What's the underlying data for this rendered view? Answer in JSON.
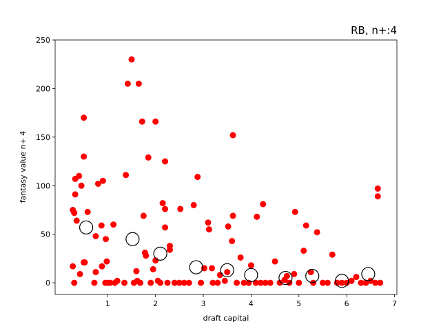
{
  "chart_data": {
    "type": "scatter",
    "title": "RB, n+:4",
    "xlabel": "draft capital",
    "ylabel": "fantasy value n+ 4",
    "xlim": [
      -0.1,
      7.05
    ],
    "ylim": [
      -12,
      250
    ],
    "xticks": [
      "1",
      "2",
      "3",
      "4",
      "5",
      "6",
      "7"
    ],
    "xtick_values": [
      1,
      2,
      3,
      4,
      5,
      6,
      7
    ],
    "yticks": [
      "0",
      "50",
      "100",
      "150",
      "200",
      "250"
    ],
    "ytick_values": [
      0,
      50,
      100,
      150,
      200,
      250
    ],
    "grid": false,
    "colors": {
      "points": "#ff0000",
      "means_edge": "#000000"
    },
    "series": [
      {
        "style": "filled-red",
        "points": [
          [
            0.27,
            75
          ],
          [
            0.3,
            72
          ],
          [
            0.27,
            17
          ],
          [
            0.3,
            0
          ],
          [
            0.32,
            107
          ],
          [
            0.32,
            91
          ],
          [
            0.35,
            64
          ],
          [
            0.4,
            110
          ],
          [
            0.42,
            9
          ],
          [
            0.45,
            100
          ],
          [
            0.5,
            170
          ],
          [
            0.5,
            130
          ],
          [
            0.5,
            21
          ],
          [
            0.52,
            21
          ],
          [
            0.58,
            73
          ],
          [
            0.72,
            0
          ],
          [
            0.75,
            48
          ],
          [
            0.75,
            11
          ],
          [
            0.8,
            102
          ],
          [
            0.87,
            59
          ],
          [
            0.88,
            17
          ],
          [
            0.9,
            105
          ],
          [
            0.95,
            0
          ],
          [
            0.96,
            45
          ],
          [
            0.98,
            22
          ],
          [
            1.0,
            0
          ],
          [
            1.05,
            0
          ],
          [
            1.12,
            60
          ],
          [
            1.15,
            0
          ],
          [
            1.2,
            2
          ],
          [
            1.35,
            0
          ],
          [
            1.38,
            111
          ],
          [
            1.42,
            205
          ],
          [
            1.5,
            230
          ],
          [
            1.55,
            0
          ],
          [
            1.6,
            12
          ],
          [
            1.62,
            2
          ],
          [
            1.65,
            205
          ],
          [
            1.68,
            0
          ],
          [
            1.72,
            166
          ],
          [
            1.75,
            69
          ],
          [
            1.78,
            31
          ],
          [
            1.8,
            28
          ],
          [
            1.85,
            129
          ],
          [
            1.9,
            0
          ],
          [
            1.95,
            14
          ],
          [
            2.0,
            166
          ],
          [
            2.0,
            23
          ],
          [
            2.05,
            2
          ],
          [
            2.1,
            0
          ],
          [
            2.15,
            82
          ],
          [
            2.2,
            125
          ],
          [
            2.2,
            57
          ],
          [
            2.2,
            76
          ],
          [
            2.25,
            0
          ],
          [
            2.3,
            38
          ],
          [
            2.3,
            34
          ],
          [
            2.4,
            0
          ],
          [
            2.5,
            0
          ],
          [
            2.52,
            76
          ],
          [
            2.6,
            0
          ],
          [
            2.7,
            0
          ],
          [
            2.8,
            80
          ],
          [
            2.88,
            109
          ],
          [
            2.95,
            0
          ],
          [
            3.02,
            15
          ],
          [
            3.1,
            62
          ],
          [
            3.12,
            55
          ],
          [
            3.18,
            15
          ],
          [
            3.2,
            0
          ],
          [
            3.3,
            0
          ],
          [
            3.35,
            8
          ],
          [
            3.45,
            2
          ],
          [
            3.5,
            11
          ],
          [
            3.52,
            58
          ],
          [
            3.6,
            43
          ],
          [
            3.62,
            69
          ],
          [
            3.62,
            152
          ],
          [
            3.7,
            0
          ],
          [
            3.78,
            26
          ],
          [
            3.85,
            0
          ],
          [
            3.95,
            0
          ],
          [
            4.0,
            18
          ],
          [
            4.1,
            0
          ],
          [
            4.12,
            68
          ],
          [
            4.2,
            0
          ],
          [
            4.25,
            81
          ],
          [
            4.3,
            0
          ],
          [
            4.4,
            0
          ],
          [
            4.5,
            22
          ],
          [
            4.6,
            0
          ],
          [
            4.7,
            3
          ],
          [
            4.75,
            7
          ],
          [
            4.8,
            0
          ],
          [
            4.9,
            9
          ],
          [
            4.92,
            73
          ],
          [
            5.0,
            0
          ],
          [
            5.1,
            33
          ],
          [
            5.15,
            59
          ],
          [
            5.25,
            11
          ],
          [
            5.3,
            0
          ],
          [
            5.38,
            52
          ],
          [
            5.5,
            0
          ],
          [
            5.6,
            0
          ],
          [
            5.7,
            29
          ],
          [
            5.8,
            0
          ],
          [
            5.9,
            0
          ],
          [
            6.0,
            0
          ],
          [
            6.1,
            2
          ],
          [
            6.2,
            6
          ],
          [
            6.3,
            0
          ],
          [
            6.4,
            0
          ],
          [
            6.5,
            2
          ],
          [
            6.6,
            0
          ],
          [
            6.65,
            97
          ],
          [
            6.65,
            89
          ],
          [
            6.7,
            0
          ]
        ]
      },
      {
        "style": "open-black-circles",
        "points": [
          [
            0.55,
            57
          ],
          [
            1.52,
            45
          ],
          [
            2.1,
            30
          ],
          [
            2.85,
            16
          ],
          [
            3.5,
            13
          ],
          [
            4.0,
            8
          ],
          [
            4.72,
            5
          ],
          [
            5.28,
            7
          ],
          [
            5.9,
            2
          ],
          [
            6.45,
            9
          ]
        ]
      }
    ]
  }
}
